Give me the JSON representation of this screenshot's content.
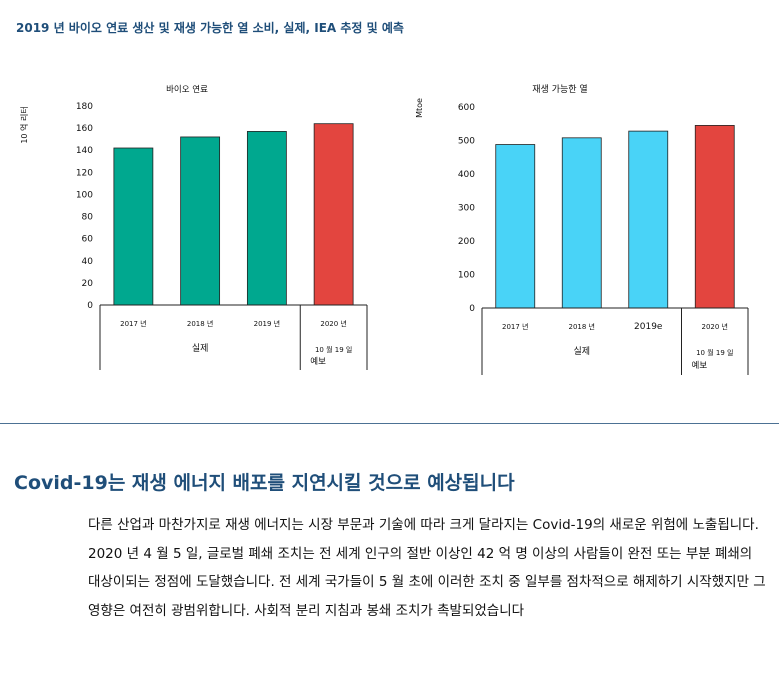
{
  "figure": {
    "title": "2019 년 바이오 연료 생산 및 재생 가능한 열 소비, 실제, IEA 추정 및 예측"
  },
  "colors": {
    "biofuel_actual": "#00a88f",
    "heat_actual": "#49d3f7",
    "forecast": "#e3453f",
    "title_blue": "#1f4e79"
  },
  "chart_data": [
    {
      "type": "bar",
      "title": "바이오 연료",
      "ylabel": "10 억 리터",
      "ylim": [
        0,
        180
      ],
      "yticks": [
        0,
        20,
        40,
        60,
        80,
        100,
        120,
        140,
        160,
        180
      ],
      "categories": [
        "2017 년",
        "2018 년",
        "2019 년",
        "2020 년"
      ],
      "values": [
        142,
        152,
        157,
        164
      ],
      "kinds": [
        "actual",
        "actual",
        "actual",
        "forecast"
      ],
      "group_labels": {
        "actual": "실제",
        "forecast_date": "10 월 19 일",
        "forecast": "예보"
      },
      "grid": false
    },
    {
      "type": "bar",
      "title": "재생 가능한 열",
      "ylabel": "Mtoe",
      "ylim": [
        0,
        600
      ],
      "yticks": [
        0,
        100,
        200,
        300,
        400,
        500,
        600
      ],
      "categories": [
        "2017 년",
        "2018 년",
        "2019e",
        "2020 년"
      ],
      "values": [
        488,
        508,
        528,
        545
      ],
      "kinds": [
        "actual",
        "actual",
        "actual",
        "forecast"
      ],
      "group_labels": {
        "actual": "실제",
        "forecast_date": "10 월 19 일",
        "forecast": "예보"
      },
      "grid": false
    }
  ],
  "article": {
    "heading": "Covid-19는 재생 에너지 배포를 지연시킬 것으로 예상됩니다",
    "paragraph": "다른 산업과 마찬가지로 재생 에너지는 시장 부문과 기술에 따라 크게 달라지는 Covid-19의 새로운 위험에 노출됩니다. 2020 년 4 월 5 일, 글로벌 폐쇄 조치는 전 세계 인구의 절반 이상인 42 억 명 이상의 사람들이 완전 또는 부분 폐쇄의 대상이되는 정점에 도달했습니다. 전 세계 국가들이 5 월 초에 이러한 조치 중 일부를 점차적으로 해제하기 시작했지만 그 영향은 여전히 광범위합니다. 사회적 분리 지침과 봉쇄 조치가 촉발되었습니다"
  }
}
